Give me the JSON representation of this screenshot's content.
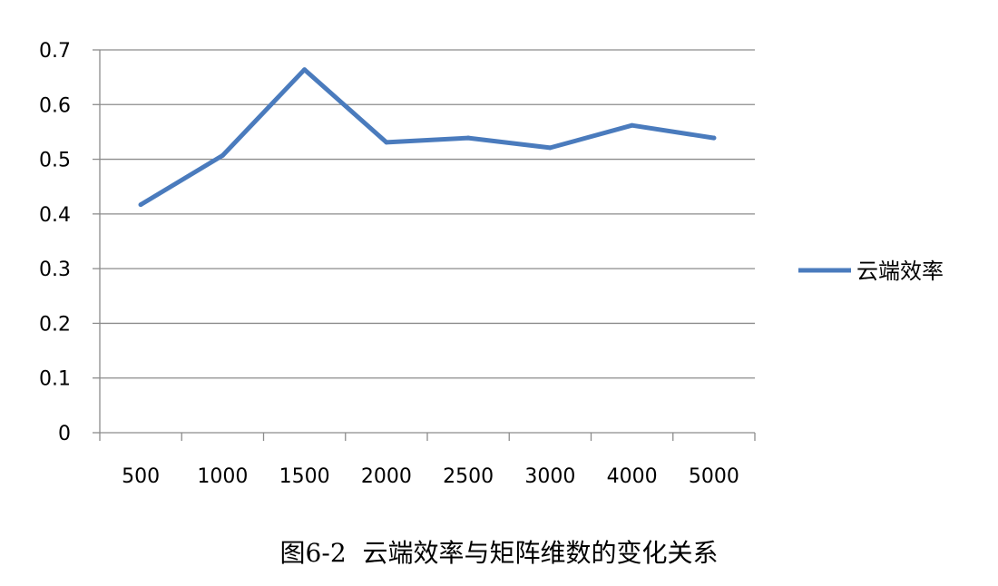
{
  "caption": "图6-2  云端效率与矩阵维数的变化关系",
  "chart_data": {
    "type": "line",
    "title": "",
    "xlabel": "",
    "ylabel": "",
    "categories": [
      "500",
      "1000",
      "1500",
      "2000",
      "2500",
      "3000",
      "4000",
      "5000"
    ],
    "series": [
      {
        "name": "云端效率",
        "values": [
          0.417,
          0.507,
          0.664,
          0.531,
          0.539,
          0.521,
          0.562,
          0.539
        ],
        "color": "#4a7bbd"
      }
    ],
    "ylim": [
      0,
      0.7
    ],
    "yticks": [
      "0",
      "0.1",
      "0.2",
      "0.3",
      "0.4",
      "0.5",
      "0.6",
      "0.7"
    ],
    "grid": true,
    "legend": "right"
  }
}
